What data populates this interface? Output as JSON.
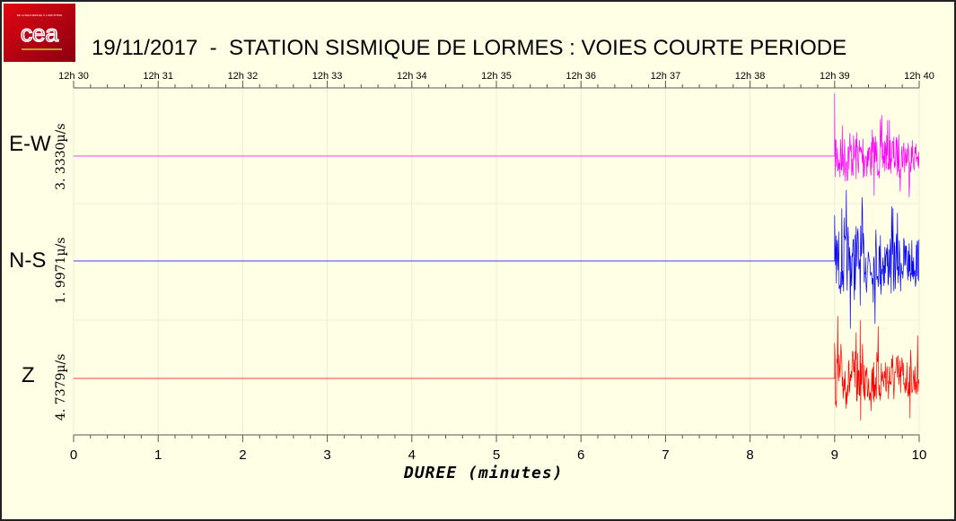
{
  "title": "19/11/2017  -  STATION SISMIQUE DE LORMES : VOIES COURTE PERIODE",
  "logo": {
    "text": "cea",
    "tagline": "DE LA RECHERCHE À L'INDUSTRIE",
    "color": "#d0021b"
  },
  "chart_data": {
    "type": "line",
    "title": "19/11/2017  -  STATION SISMIQUE DE LORMES : VOIES COURTE PERIODE",
    "xlabel": "DUREE (minutes)",
    "xlim": [
      0,
      10
    ],
    "x_ticks": [
      "0",
      "1",
      "2",
      "3",
      "4",
      "5",
      "6",
      "7",
      "8",
      "9",
      "10"
    ],
    "top_ticks": [
      "12h 30",
      "12h 31",
      "12h 32",
      "12h 33",
      "12h 34",
      "12h 35",
      "12h 36",
      "12h 37",
      "12h 38",
      "12h 39",
      "12h 40"
    ],
    "grid": true,
    "series": [
      {
        "name": "E-W",
        "scale": "3. 3330µ/s",
        "color": "#ff00ff",
        "event_start_min": 9.0
      },
      {
        "name": "N-S",
        "scale": "1. 9971µ/s",
        "color": "#0000ff",
        "event_start_min": 9.0
      },
      {
        "name": "Z",
        "scale": "4. 7379µ/s",
        "color": "#ff0000",
        "event_start_min": 9.0
      }
    ]
  }
}
